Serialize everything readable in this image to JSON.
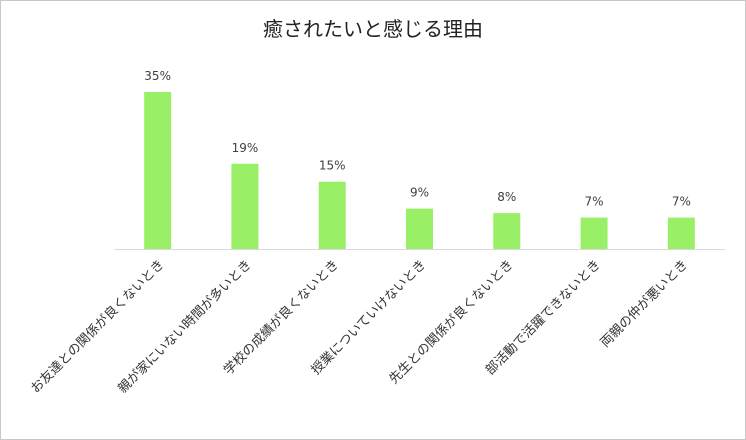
{
  "chart_data": {
    "type": "bar",
    "title": "癒されたいと感じる理由",
    "categories": [
      "お友達との関係が良くないとき",
      "親が家にいない時間が多いとき",
      "学校の成績が良くないとき",
      "授業についていけないとき",
      "先生との関係が良くないとき",
      "部活動で活躍できないとき",
      "両親の仲が悪いとき"
    ],
    "values": [
      35,
      19,
      15,
      9,
      8,
      7,
      7
    ],
    "value_labels": [
      "35%",
      "19%",
      "15%",
      "9%",
      "8%",
      "7%",
      "7%"
    ],
    "color": "#99ef66"
  }
}
